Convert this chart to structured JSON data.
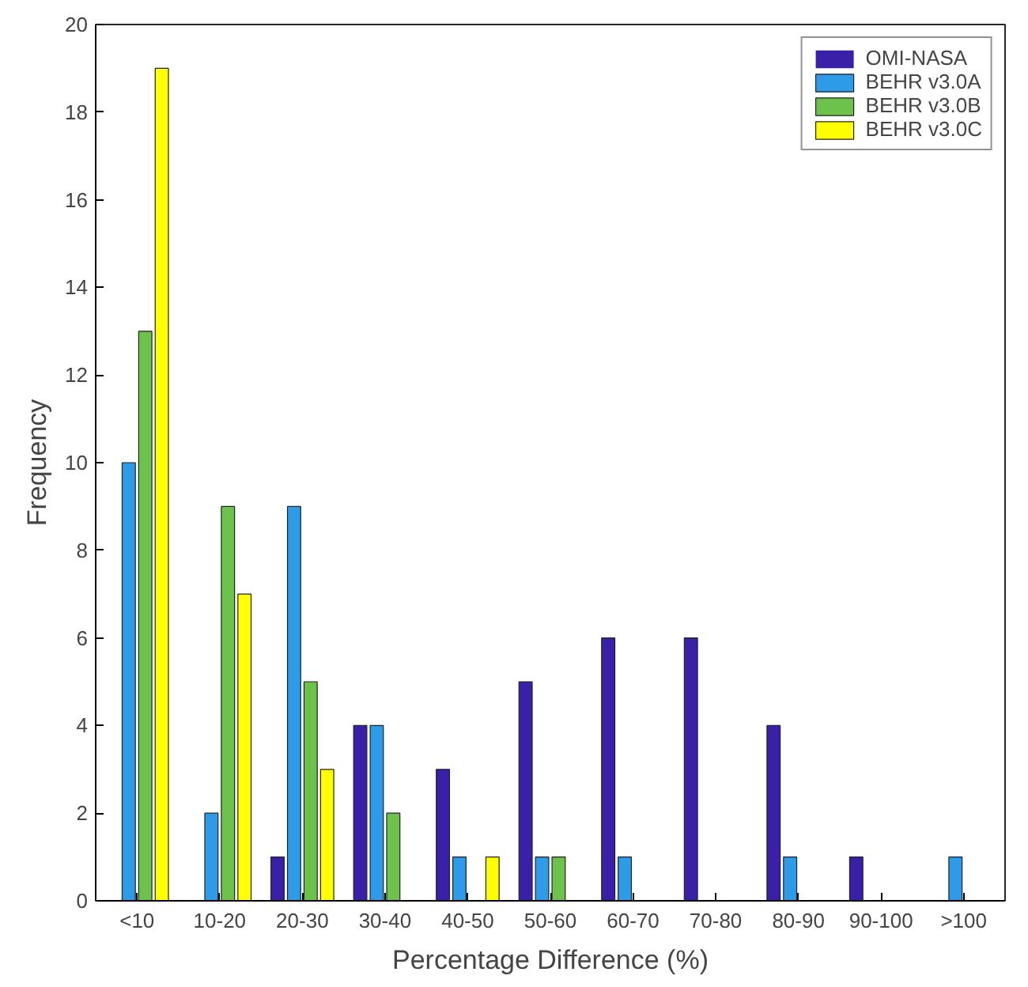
{
  "chart_data": {
    "type": "bar",
    "xlabel": "Percentage Difference (%)",
    "ylabel": "Frequency",
    "categories": [
      "<10",
      "10-20",
      "20-30",
      "30-40",
      "40-50",
      "50-60",
      "60-70",
      "70-80",
      "80-90",
      "90-100",
      ">100"
    ],
    "series": [
      {
        "name": "OMI-NASA",
        "color": "#3a1fa8",
        "values": [
          0,
          0,
          1,
          4,
          3,
          5,
          6,
          6,
          4,
          1,
          0
        ]
      },
      {
        "name": "BEHR v3.0A",
        "color": "#2e9be8",
        "values": [
          10,
          2,
          9,
          4,
          1,
          1,
          1,
          0,
          1,
          0,
          1
        ]
      },
      {
        "name": "BEHR v3.0B",
        "color": "#6cc24a",
        "values": [
          13,
          9,
          5,
          2,
          0,
          1,
          0,
          0,
          0,
          0,
          0
        ]
      },
      {
        "name": "BEHR v3.0C",
        "color": "#ffff00",
        "values": [
          19,
          7,
          3,
          0,
          1,
          0,
          0,
          0,
          0,
          0,
          0
        ]
      }
    ],
    "ylim": [
      0,
      20
    ],
    "yticks": [
      0,
      2,
      4,
      6,
      8,
      10,
      12,
      14,
      16,
      18,
      20
    ],
    "grid": false,
    "legend": "top right"
  }
}
